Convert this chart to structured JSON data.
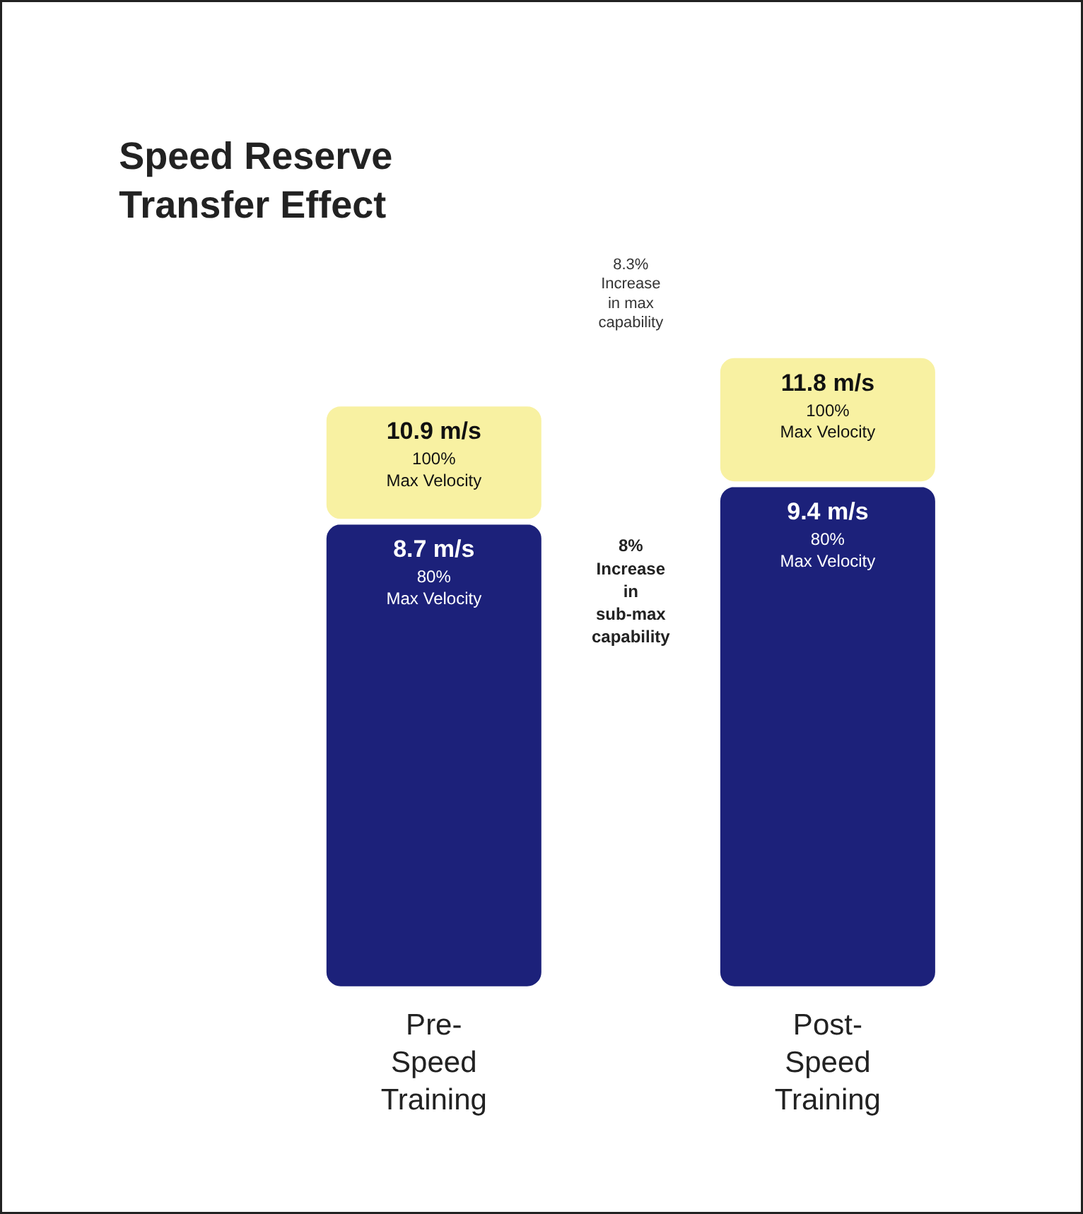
{
  "chart_data": {
    "type": "bar",
    "title": "Speed Reserve\nTransfer Effect",
    "ylim": [
      -4.2,
      18.4
    ],
    "stacked": true,
    "categories": [
      "Pre-\nSpeed\nTraining",
      "Post-\nSpeed\nTraining"
    ],
    "series": [
      {
        "color": "#1c217a",
        "values": [
          8.7,
          9.4
        ],
        "value_labels": [
          "8.7 m/s\n80%\nMax Velocity",
          "9.4 m/s\n80%\nMax Velocity"
        ]
      },
      {
        "color": "#f8f1a2",
        "values": [
          2.2,
          2.4
        ]
      }
    ],
    "annotations": [
      "8.3%\nIncrease\nin max\ncapability",
      "8%\nIncrease\nin\nsub-max\ncapability",
      {
        "text": "10.9 m/s\n100%\nMax Velocity",
        "x": "Pre-\nSpeed\nTraining",
        "y": 10.9
      },
      {
        "text": "11.8 m/s\n100%\nMax Velocity",
        "x": "Post-\nSpeed\nTraining",
        "y": 11.8
      }
    ]
  }
}
